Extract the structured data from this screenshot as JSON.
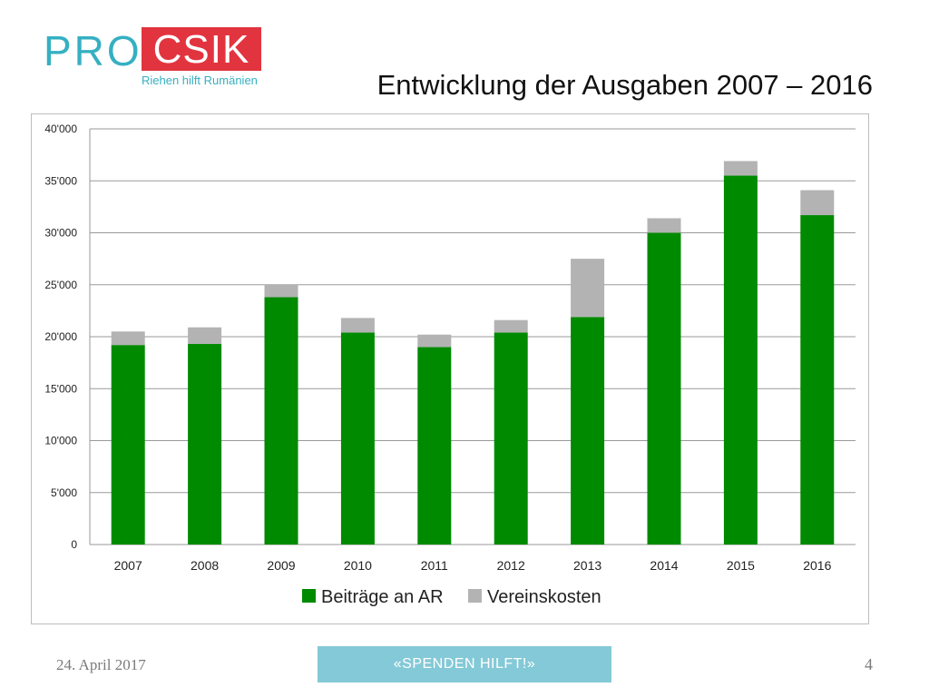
{
  "logo": {
    "pro": "PRO",
    "csik": "CSIK",
    "tagline": "Riehen hilft Rumänien"
  },
  "slide": {
    "title": "Entwicklung der Ausgaben 2007 – 2016",
    "date": "24. April 2017",
    "page_number": "4",
    "badge": "«SPENDEN HILFT!»"
  },
  "colors": {
    "series_1": "#008a00",
    "series_2": "#b3b3b3",
    "logo_teal": "#35b0c2",
    "logo_red": "#e2343f",
    "badge": "#84c9d7"
  },
  "chart_data": {
    "type": "bar",
    "stacked": true,
    "categories": [
      "2007",
      "2008",
      "2009",
      "2010",
      "2011",
      "2012",
      "2013",
      "2014",
      "2015",
      "2016"
    ],
    "series": [
      {
        "name": "Beiträge an AR",
        "values": [
          19200,
          19300,
          23800,
          20400,
          19000,
          20400,
          21900,
          30000,
          35500,
          31700
        ]
      },
      {
        "name": "Vereinskosten",
        "values": [
          1300,
          1600,
          1200,
          1400,
          1200,
          1200,
          5600,
          1400,
          1400,
          2400
        ]
      }
    ],
    "ylim": [
      0,
      40000
    ],
    "yticks": [
      0,
      5000,
      10000,
      15000,
      20000,
      25000,
      30000,
      35000,
      40000
    ],
    "ytick_labels": [
      "0",
      "5'000",
      "10'000",
      "15'000",
      "20'000",
      "25'000",
      "30'000",
      "35'000",
      "40'000"
    ],
    "grid": true,
    "legend_position": "bottom"
  }
}
